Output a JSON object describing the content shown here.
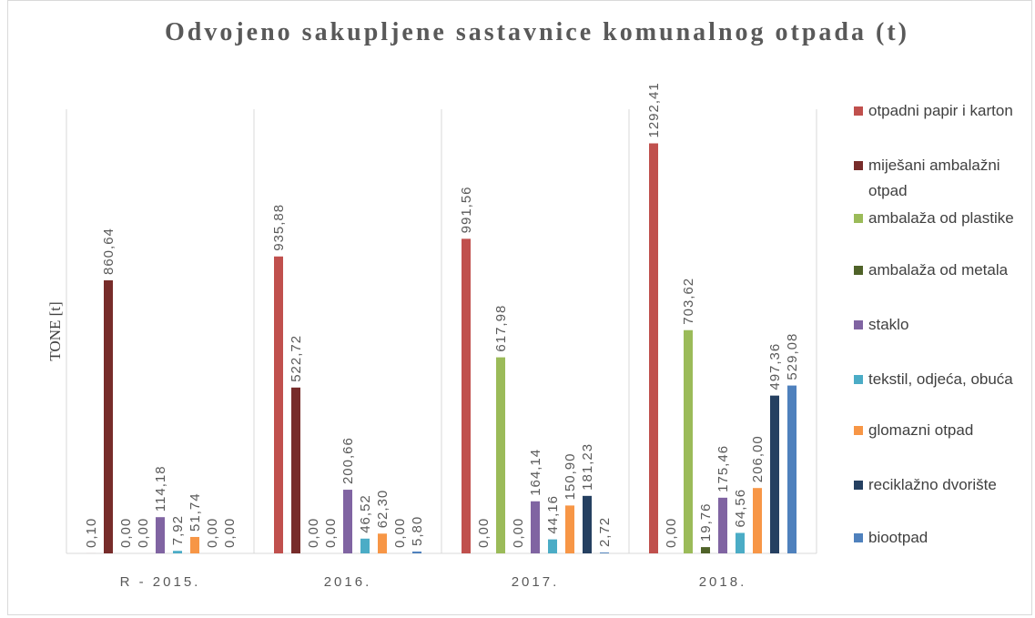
{
  "chart_data": {
    "type": "bar",
    "title": "Odvojeno sakupljene sastavnice komunalnog otpada (t)",
    "y_label": "TONE [t]",
    "categories": [
      "R - 2015.",
      "2016.",
      "2017.",
      "2018."
    ],
    "ylim": [
      0,
      1400
    ],
    "series": [
      {
        "name": "otpadni papir i karton",
        "color": "#c0504d",
        "values": [
          0.1,
          935.88,
          991.56,
          1292.41
        ],
        "value_labels": [
          "0,10",
          "935,88",
          "991,56",
          "1292,41"
        ]
      },
      {
        "name": "miješani ambalažni otpad",
        "color": "#772c2a",
        "values": [
          860.64,
          522.72,
          0.0,
          0.0
        ],
        "value_labels": [
          "860,64",
          "522,72",
          "0,00",
          "0,00"
        ]
      },
      {
        "name": "ambalaža od plastike",
        "color": "#9bbb59",
        "values": [
          0.0,
          0.0,
          617.98,
          703.62
        ],
        "value_labels": [
          "0,00",
          "0,00",
          "617,98",
          "703,62"
        ]
      },
      {
        "name": "ambalaža od metala",
        "color": "#4f6228",
        "values": [
          0.0,
          0.0,
          0.0,
          19.76
        ],
        "value_labels": [
          "0,00",
          "0,00",
          "0,00",
          "19,76"
        ]
      },
      {
        "name": "staklo",
        "color": "#8064a2",
        "values": [
          114.18,
          200.66,
          164.14,
          175.46
        ],
        "value_labels": [
          "114,18",
          "200,66",
          "164,14",
          "175,46"
        ]
      },
      {
        "name": "tekstil, odjeća, obuća",
        "color": "#4bacc6",
        "values": [
          7.92,
          46.52,
          44.16,
          64.56
        ],
        "value_labels": [
          "7,92",
          "46,52",
          "44,16",
          "64,56"
        ]
      },
      {
        "name": "glomazni otpad",
        "color": "#f79646",
        "values": [
          51.74,
          62.3,
          150.9,
          206.0
        ],
        "value_labels": [
          "51,74",
          "62,30",
          "150,90",
          "206,00"
        ]
      },
      {
        "name": "reciklažno dvorište",
        "color": "#254061",
        "values": [
          0.0,
          0.0,
          181.23,
          497.36
        ],
        "value_labels": [
          "0,00",
          "0,00",
          "181,23",
          "497,36"
        ]
      },
      {
        "name": "biootpad",
        "color": "#4f81bd",
        "values": [
          0.0,
          5.8,
          2.72,
          529.08
        ],
        "value_labels": [
          "0,00",
          "5,80",
          "2,72",
          "529,08"
        ]
      }
    ]
  }
}
